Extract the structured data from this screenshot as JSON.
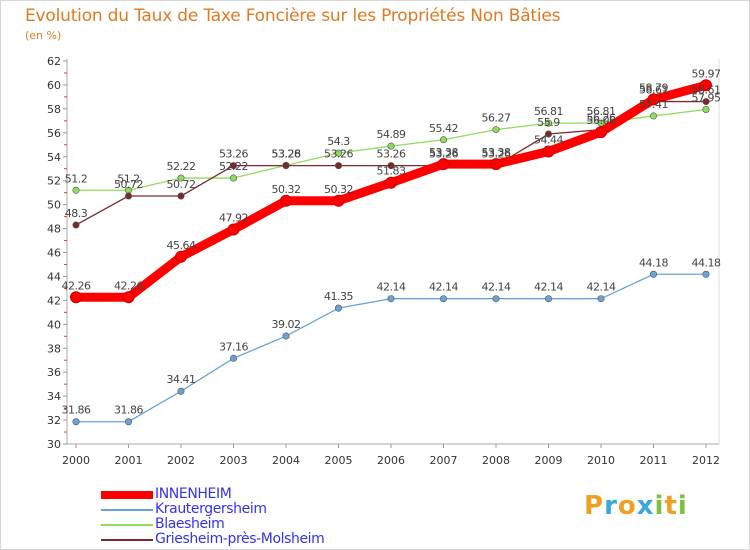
{
  "chart_data": {
    "type": "line",
    "title": "Evolution du Taux de Taxe Foncière sur les Propriétés Non Bâties",
    "unit_label": "(en %)",
    "xlabel": "",
    "ylabel": "",
    "ylim": [
      30,
      62
    ],
    "y_ticks": [
      "30",
      "32",
      "34",
      "36",
      "38",
      "40",
      "42",
      "44",
      "46",
      "48",
      "50",
      "52",
      "54",
      "56",
      "58",
      "60",
      "62"
    ],
    "categories": [
      "2000",
      "2001",
      "2002",
      "2003",
      "2004",
      "2005",
      "2006",
      "2007",
      "2008",
      "2009",
      "2010",
      "2011",
      "2012"
    ],
    "series": [
      {
        "name": "INNENHEIM",
        "color": "#ff0000",
        "values": [
          42.26,
          42.26,
          45.64,
          47.92,
          50.32,
          50.32,
          51.83,
          53.38,
          53.38,
          54.44,
          56.06,
          58.79,
          59.97
        ],
        "labels": [
          "42.26",
          "42.26",
          "45.64",
          "47.92",
          "50.32",
          "50.32",
          "51.83",
          "53.38",
          "53.38",
          "54.44",
          "56.06",
          "58.79",
          "59.97"
        ]
      },
      {
        "name": "Krautergersheim",
        "color": "#6aa3d5",
        "values": [
          31.86,
          31.86,
          34.41,
          37.16,
          39.02,
          41.35,
          42.14,
          42.14,
          42.14,
          42.14,
          42.14,
          44.18,
          44.18
        ],
        "labels": [
          "31.86",
          "31.86",
          "34.41",
          "37.16",
          "39.02",
          "41.35",
          "42.14",
          "42.14",
          "42.14",
          "42.14",
          "42.14",
          "44.18",
          "44.18"
        ]
      },
      {
        "name": "Blaesheim",
        "color": "#8fdc5e",
        "values": [
          51.2,
          51.2,
          52.22,
          52.22,
          53.28,
          54.3,
          54.89,
          55.42,
          56.27,
          56.81,
          56.81,
          57.41,
          57.95
        ],
        "labels": [
          "51.2",
          "51.2",
          "52.22",
          "52.22",
          "53.28",
          "54.3",
          "54.89",
          "55.42",
          "56.27",
          "56.81",
          "56.81",
          "57.41",
          "57.95"
        ]
      },
      {
        "name": "Griesheim-près-Molsheim",
        "color": "#7a2a2a",
        "values": [
          48.3,
          50.72,
          50.72,
          53.26,
          53.26,
          53.26,
          53.26,
          53.26,
          53.26,
          55.9,
          56.26,
          58.61,
          58.61
        ],
        "labels": [
          "48.3",
          "50.72",
          "50.72",
          "53.26",
          "53.26",
          "53.26",
          "53.26",
          "53.26",
          "53.26",
          "55.9",
          "56.26",
          "58.61",
          "58.61"
        ]
      }
    ],
    "legend_position": "bottom-left",
    "grid": false
  },
  "logo": {
    "letters": [
      "P",
      "r",
      "o",
      "x",
      "i",
      "t",
      "i"
    ],
    "colors": [
      "#f0a020",
      "#39a9dc",
      "#f0a020",
      "#39a9dc",
      "#7cc043",
      "#f0a020",
      "#7cc043"
    ]
  }
}
